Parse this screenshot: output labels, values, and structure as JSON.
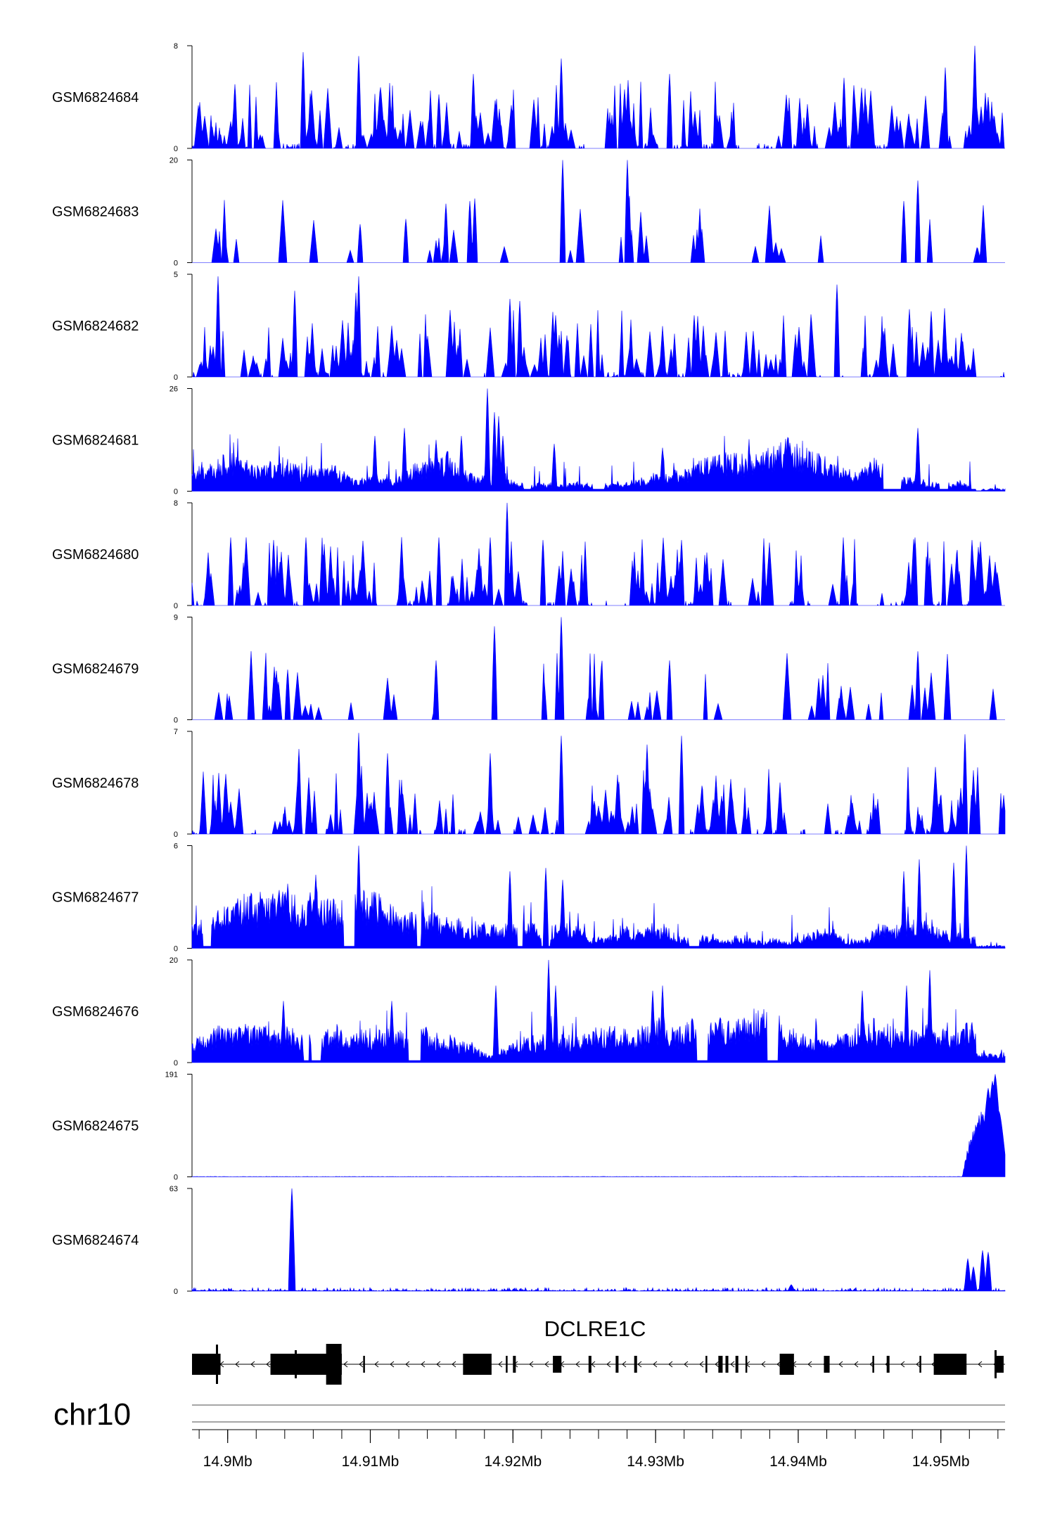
{
  "chart_data": {
    "type": "area",
    "color": "#0000ff",
    "chromosome": "chr10",
    "x_ticks": [
      "14.9Mb",
      "14.91Mb",
      "14.92Mb",
      "14.93Mb",
      "14.94Mb",
      "14.95Mb"
    ],
    "x_tick_values": [
      14.9,
      14.91,
      14.92,
      14.93,
      14.94,
      14.95
    ],
    "xlim": [
      14.8975,
      14.9545
    ],
    "gene": {
      "name": "DCLRE1C",
      "strand": "-",
      "exons": [
        [
          14.8975,
          14.8995
        ],
        [
          14.903,
          14.907
        ],
        [
          14.907,
          14.908
        ],
        [
          14.9095,
          14.9096
        ],
        [
          14.9165,
          14.9185
        ],
        [
          14.9195,
          14.9196
        ],
        [
          14.92,
          14.9202
        ],
        [
          14.9228,
          14.9234
        ],
        [
          14.9253,
          14.9255
        ],
        [
          14.9272,
          14.9274
        ],
        [
          14.9285,
          14.9287
        ],
        [
          14.9335,
          14.9336
        ],
        [
          14.9344,
          14.9347
        ],
        [
          14.9349,
          14.9351
        ],
        [
          14.9356,
          14.9358
        ],
        [
          14.9363,
          14.9364
        ],
        [
          14.9387,
          14.9397
        ],
        [
          14.9418,
          14.9422
        ],
        [
          14.9452,
          14.9453
        ],
        [
          14.9462,
          14.9464
        ],
        [
          14.9485,
          14.9486
        ],
        [
          14.9495,
          14.9518
        ],
        [
          14.9539,
          14.9544
        ]
      ]
    },
    "series": [
      {
        "name": "GSM6824684",
        "ymax": "8",
        "ymin": "0",
        "style": "spiky",
        "peaks": [
          [
            14.9053,
            7.5
          ],
          [
            14.9092,
            7.2
          ],
          [
            14.9172,
            5.8
          ],
          [
            14.9234,
            7.0
          ],
          [
            14.931,
            5.8
          ],
          [
            14.9432,
            5.5
          ],
          [
            14.9503,
            6.3
          ],
          [
            14.9524,
            8.0
          ],
          [
            14.9533,
            4.0
          ],
          [
            14.9005,
            5.0
          ],
          [
            14.9148,
            4.2
          ],
          [
            14.9278,
            4.6
          ]
        ]
      },
      {
        "name": "GSM6824683",
        "ymax": "20",
        "ymin": "0",
        "style": "sparse",
        "peaks": [
          [
            14.9235,
            20
          ],
          [
            14.928,
            20
          ],
          [
            14.9173,
            12.5
          ],
          [
            14.917,
            12
          ],
          [
            14.9153,
            11.5
          ],
          [
            14.9125,
            8.5
          ],
          [
            14.9484,
            16
          ],
          [
            14.9474,
            12
          ],
          [
            14.9093,
            7.5
          ]
        ]
      },
      {
        "name": "GSM6824682",
        "ymax": "5",
        "ymin": "0",
        "style": "spiky",
        "peaks": [
          [
            14.8993,
            4.9
          ],
          [
            14.9092,
            4.9
          ],
          [
            14.9047,
            4.2
          ],
          [
            14.909,
            4.1
          ],
          [
            14.9198,
            3.8
          ],
          [
            14.9205,
            3.7
          ],
          [
            14.923,
            3.0
          ],
          [
            14.9327,
            3.0
          ],
          [
            14.9427,
            4.5
          ],
          [
            14.9478,
            3.3
          ],
          [
            14.9493,
            3.2
          ]
        ]
      },
      {
        "name": "GSM6824681",
        "ymax": "26",
        "ymin": "0",
        "style": "dense",
        "peaks": [
          [
            14.9182,
            26
          ],
          [
            14.9187,
            20
          ],
          [
            14.919,
            19
          ],
          [
            14.9124,
            16
          ],
          [
            14.9164,
            14
          ],
          [
            14.9229,
            12
          ],
          [
            14.9193,
            14
          ],
          [
            14.9484,
            16
          ],
          [
            14.9103,
            14
          ],
          [
            14.9146,
            13
          ],
          [
            14.9305,
            11
          ]
        ]
      },
      {
        "name": "GSM6824680",
        "ymax": "8",
        "ymin": "0",
        "style": "spiky",
        "peaks": [
          [
            14.9196,
            8
          ],
          [
            14.9002,
            5.3
          ],
          [
            14.9055,
            5.3
          ],
          [
            14.9032,
            5.1
          ],
          [
            14.9148,
            5.3
          ],
          [
            14.9184,
            5.3
          ],
          [
            14.9221,
            5.1
          ],
          [
            14.9318,
            5.1
          ],
          [
            14.9482,
            5.3
          ],
          [
            14.9522,
            5.1
          ]
        ]
      },
      {
        "name": "GSM6824679",
        "ymax": "9",
        "ymin": "0",
        "style": "sparse",
        "peaks": [
          [
            14.9234,
            9
          ],
          [
            14.9187,
            8.2
          ],
          [
            14.9484,
            6.0
          ],
          [
            14.9146,
            5.2
          ],
          [
            14.931,
            5.2
          ],
          [
            14.9042,
            4.4
          ],
          [
            14.9262,
            4.7
          ]
        ]
      },
      {
        "name": "GSM6824678",
        "ymax": "7",
        "ymin": "0",
        "style": "spiky",
        "peaks": [
          [
            14.9092,
            6.9
          ],
          [
            14.9234,
            6.7
          ],
          [
            14.9318,
            6.7
          ],
          [
            14.9517,
            6.8
          ],
          [
            14.905,
            5.8
          ],
          [
            14.9112,
            5.5
          ],
          [
            14.9184,
            5.5
          ],
          [
            14.9294,
            6.1
          ]
        ]
      },
      {
        "name": "GSM6824677",
        "ymax": "6",
        "ymin": "0",
        "style": "dense",
        "peaks": [
          [
            14.9092,
            6.0
          ],
          [
            14.9518,
            6.0
          ],
          [
            14.9062,
            4.3
          ],
          [
            14.9198,
            4.5
          ],
          [
            14.9223,
            4.7
          ],
          [
            14.9235,
            4.0
          ],
          [
            14.9485,
            5.2
          ],
          [
            14.9509,
            5.0
          ],
          [
            14.9474,
            4.5
          ]
        ]
      },
      {
        "name": "GSM6824676",
        "ymax": "20",
        "ymin": "0",
        "style": "dense",
        "peaks": [
          [
            14.9225,
            20
          ],
          [
            14.9115,
            12
          ],
          [
            14.9188,
            15
          ],
          [
            14.923,
            15
          ],
          [
            14.9305,
            15
          ],
          [
            14.9492,
            18
          ],
          [
            14.9476,
            15
          ],
          [
            14.9445,
            14
          ],
          [
            14.9039,
            12
          ],
          [
            14.9298,
            14
          ]
        ]
      },
      {
        "name": "GSM6824675",
        "ymax": "191",
        "ymin": "0",
        "style": "endpeak",
        "peaks": [
          [
            14.9536,
            178
          ],
          [
            14.9538,
            191
          ],
          [
            14.9533,
            165
          ],
          [
            14.9541,
            120
          ],
          [
            14.953,
            100
          ]
        ]
      },
      {
        "name": "GSM6824674",
        "ymax": "63",
        "ymin": "0",
        "style": "twopeak",
        "peaks": [
          [
            14.9045,
            63
          ],
          [
            14.9519,
            20
          ],
          [
            14.9529,
            25
          ],
          [
            14.9533,
            24
          ],
          [
            14.9523,
            15
          ],
          [
            14.9395,
            4
          ]
        ]
      }
    ]
  }
}
